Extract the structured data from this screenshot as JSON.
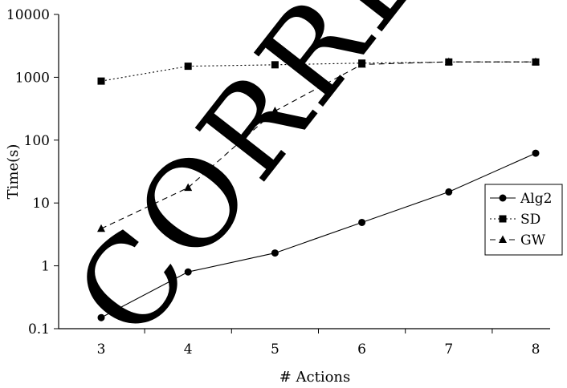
{
  "chart_data": {
    "type": "line",
    "title": "",
    "xlabel": "# Actions",
    "ylabel": "Time(s)",
    "yscale": "log",
    "categories": [
      "3",
      "4",
      "5",
      "6",
      "7",
      "8"
    ],
    "ylim": [
      0.1,
      10000
    ],
    "yticks": [
      "0.1",
      "1",
      "10",
      "100",
      "1000",
      "10000"
    ],
    "grid": false,
    "legend_position": "right",
    "series": [
      {
        "name": "Alg2",
        "marker": "circle",
        "line": "solid",
        "values": [
          0.15,
          0.8,
          1.6,
          4.9,
          15,
          62
        ]
      },
      {
        "name": "SD",
        "marker": "square",
        "line": "dotted",
        "values": [
          870,
          1500,
          1580,
          1680,
          1750,
          1750
        ]
      },
      {
        "name": "GW",
        "marker": "triangle",
        "line": "dashed",
        "values": [
          3.9,
          17.5,
          290,
          1600,
          1760,
          1760
        ]
      }
    ],
    "watermark": "CORRECTED",
    "colors": {
      "series": "#000000",
      "axis": "#000000",
      "watermark": "#e6e6e6"
    }
  }
}
